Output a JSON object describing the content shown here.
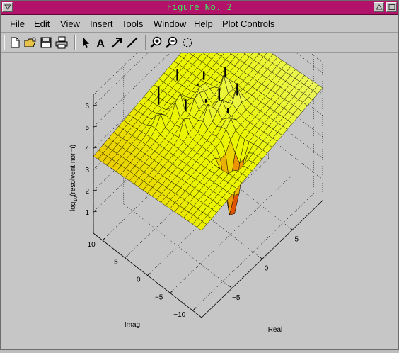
{
  "window": {
    "title": "Figure No. 2"
  },
  "menu": [
    {
      "label": "File",
      "ul": "F"
    },
    {
      "label": "Edit",
      "ul": "E"
    },
    {
      "label": "View",
      "ul": "V"
    },
    {
      "label": "Insert",
      "ul": "I"
    },
    {
      "label": "Tools",
      "ul": "T"
    },
    {
      "label": "Window",
      "ul": "W"
    },
    {
      "label": "Help",
      "ul": "H"
    },
    {
      "label": "Plot Controls",
      "ul": "P"
    }
  ],
  "toolbar": [
    "new-file-icon",
    "open-folder-icon",
    "save-icon",
    "print-icon",
    "select-arrow-icon",
    "insert-text-icon",
    "insert-arrow-icon",
    "insert-line-icon",
    "zoom-in-icon",
    "zoom-out-icon",
    "rotate-3d-icon"
  ],
  "toolbar_text": {
    "text_tool_glyph": "A"
  },
  "chart_data": {
    "type": "surface",
    "zlabel_main": "log",
    "zlabel_sub": "10",
    "zlabel_rest": "(resolvent norm)",
    "xlabel": "Real",
    "ylabel": "Imag",
    "x_ticks": [
      "−5",
      "0",
      "5"
    ],
    "y_ticks": [
      "10",
      "5",
      "0",
      "−5",
      "−10"
    ],
    "z_ticks": [
      "1",
      "2",
      "3",
      "4",
      "5",
      "6"
    ],
    "xlim": [
      -10,
      10
    ],
    "ylim": [
      -12,
      12
    ],
    "zlim": [
      0,
      6.5
    ],
    "grid": true,
    "colormap": "hot",
    "edge_color": "#000000"
  }
}
